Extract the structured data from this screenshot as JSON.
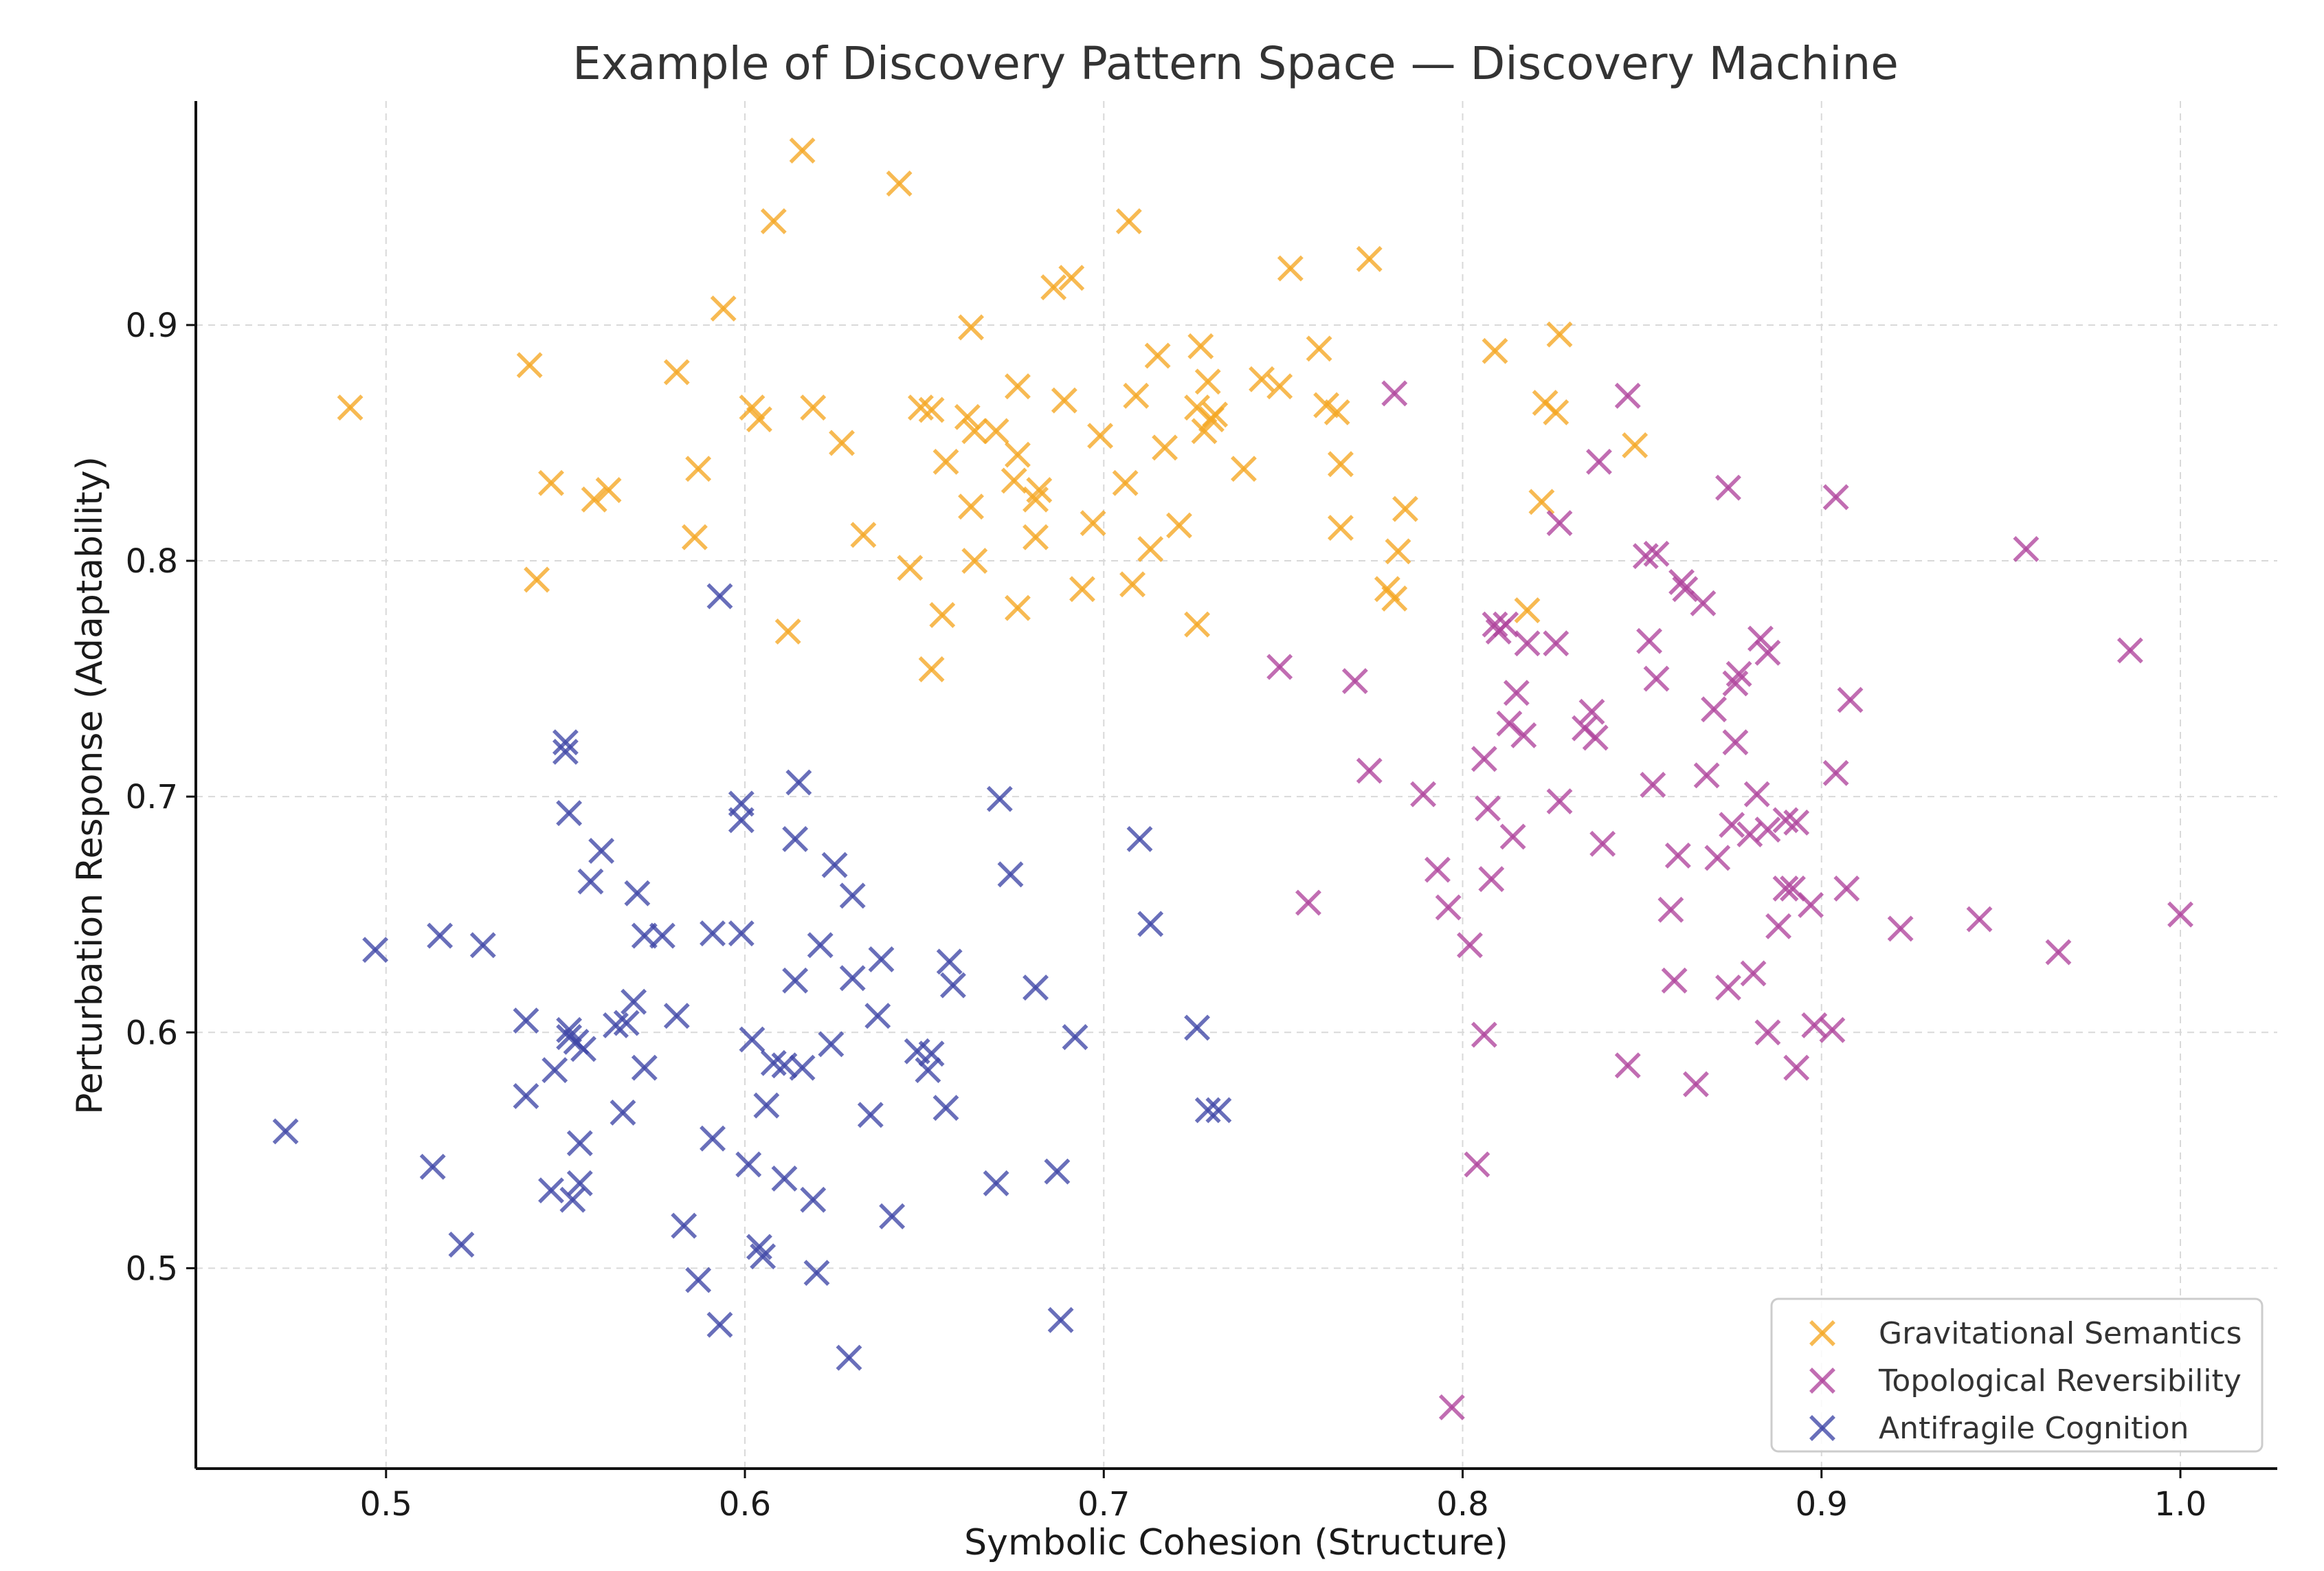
{
  "chart_data": {
    "type": "scatter",
    "title": "Example of Discovery Pattern Space — Discovery Machine",
    "xlabel": "Symbolic Cohesion (Structure)",
    "ylabel": "Perturbation Response (Adaptability)",
    "xlim": [
      0.447,
      1.027
    ],
    "ylim": [
      0.415,
      0.995
    ],
    "xticks": [
      0.5,
      0.6,
      0.7,
      0.8,
      0.9,
      1.0
    ],
    "xtick_labels": [
      "0.5",
      "0.6",
      "0.7",
      "0.8",
      "0.9",
      "1.0"
    ],
    "yticks": [
      0.5,
      0.6,
      0.7,
      0.8,
      0.9
    ],
    "ytick_labels": [
      "0.5",
      "0.6",
      "0.7",
      "0.8",
      "0.9"
    ],
    "grid": true,
    "legend_position": "bottom-right",
    "marker": "x",
    "series": [
      {
        "name": "Gravitational Semantics",
        "color": "#F5A623",
        "points": [
          [
            0.49,
            0.865
          ],
          [
            0.54,
            0.883
          ],
          [
            0.542,
            0.792
          ],
          [
            0.546,
            0.833
          ],
          [
            0.558,
            0.826
          ],
          [
            0.562,
            0.83
          ],
          [
            0.581,
            0.88
          ],
          [
            0.586,
            0.81
          ],
          [
            0.587,
            0.839
          ],
          [
            0.594,
            0.907
          ],
          [
            0.602,
            0.865
          ],
          [
            0.604,
            0.86
          ],
          [
            0.608,
            0.944
          ],
          [
            0.612,
            0.77
          ],
          [
            0.616,
            0.974
          ],
          [
            0.619,
            0.865
          ],
          [
            0.627,
            0.85
          ],
          [
            0.633,
            0.811
          ],
          [
            0.643,
            0.96
          ],
          [
            0.646,
            0.797
          ],
          [
            0.649,
            0.865
          ],
          [
            0.652,
            0.864
          ],
          [
            0.652,
            0.754
          ],
          [
            0.655,
            0.777
          ],
          [
            0.656,
            0.842
          ],
          [
            0.662,
            0.861
          ],
          [
            0.663,
            0.823
          ],
          [
            0.663,
            0.899
          ],
          [
            0.664,
            0.855
          ],
          [
            0.664,
            0.8
          ],
          [
            0.67,
            0.855
          ],
          [
            0.675,
            0.834
          ],
          [
            0.676,
            0.845
          ],
          [
            0.676,
            0.874
          ],
          [
            0.676,
            0.78
          ],
          [
            0.681,
            0.81
          ],
          [
            0.681,
            0.826
          ],
          [
            0.682,
            0.83
          ],
          [
            0.686,
            0.916
          ],
          [
            0.689,
            0.868
          ],
          [
            0.691,
            0.92
          ],
          [
            0.694,
            0.788
          ],
          [
            0.697,
            0.816
          ],
          [
            0.699,
            0.853
          ],
          [
            0.706,
            0.833
          ],
          [
            0.707,
            0.944
          ],
          [
            0.708,
            0.79
          ],
          [
            0.709,
            0.87
          ],
          [
            0.713,
            0.805
          ],
          [
            0.715,
            0.887
          ],
          [
            0.717,
            0.848
          ],
          [
            0.721,
            0.815
          ],
          [
            0.726,
            0.773
          ],
          [
            0.726,
            0.865
          ],
          [
            0.727,
            0.891
          ],
          [
            0.728,
            0.855
          ],
          [
            0.729,
            0.876
          ],
          [
            0.73,
            0.86
          ],
          [
            0.731,
            0.862
          ],
          [
            0.739,
            0.839
          ],
          [
            0.744,
            0.877
          ],
          [
            0.749,
            0.874
          ],
          [
            0.752,
            0.924
          ],
          [
            0.76,
            0.89
          ],
          [
            0.762,
            0.866
          ],
          [
            0.765,
            0.863
          ],
          [
            0.766,
            0.841
          ],
          [
            0.766,
            0.814
          ],
          [
            0.774,
            0.928
          ],
          [
            0.779,
            0.788
          ],
          [
            0.781,
            0.784
          ],
          [
            0.782,
            0.804
          ],
          [
            0.784,
            0.822
          ],
          [
            0.809,
            0.889
          ],
          [
            0.818,
            0.779
          ],
          [
            0.822,
            0.825
          ],
          [
            0.823,
            0.867
          ],
          [
            0.826,
            0.863
          ],
          [
            0.827,
            0.896
          ],
          [
            0.848,
            0.849
          ]
        ]
      },
      {
        "name": "Topological Reversibility",
        "color": "#B0449C",
        "points": [
          [
            0.749,
            0.755
          ],
          [
            0.757,
            0.655
          ],
          [
            0.77,
            0.749
          ],
          [
            0.774,
            0.711
          ],
          [
            0.781,
            0.871
          ],
          [
            0.789,
            0.701
          ],
          [
            0.793,
            0.669
          ],
          [
            0.796,
            0.653
          ],
          [
            0.797,
            0.441
          ],
          [
            0.802,
            0.637
          ],
          [
            0.804,
            0.544
          ],
          [
            0.806,
            0.599
          ],
          [
            0.806,
            0.716
          ],
          [
            0.807,
            0.695
          ],
          [
            0.808,
            0.665
          ],
          [
            0.809,
            0.773
          ],
          [
            0.81,
            0.77
          ],
          [
            0.812,
            0.773
          ],
          [
            0.813,
            0.731
          ],
          [
            0.814,
            0.683
          ],
          [
            0.815,
            0.744
          ],
          [
            0.817,
            0.726
          ],
          [
            0.818,
            0.765
          ],
          [
            0.826,
            0.765
          ],
          [
            0.827,
            0.816
          ],
          [
            0.827,
            0.698
          ],
          [
            0.834,
            0.729
          ],
          [
            0.836,
            0.736
          ],
          [
            0.837,
            0.725
          ],
          [
            0.838,
            0.842
          ],
          [
            0.839,
            0.68
          ],
          [
            0.846,
            0.87
          ],
          [
            0.846,
            0.586
          ],
          [
            0.851,
            0.802
          ],
          [
            0.852,
            0.766
          ],
          [
            0.853,
            0.705
          ],
          [
            0.854,
            0.75
          ],
          [
            0.854,
            0.803
          ],
          [
            0.858,
            0.652
          ],
          [
            0.859,
            0.622
          ],
          [
            0.86,
            0.675
          ],
          [
            0.861,
            0.791
          ],
          [
            0.862,
            0.788
          ],
          [
            0.865,
            0.578
          ],
          [
            0.867,
            0.782
          ],
          [
            0.868,
            0.709
          ],
          [
            0.87,
            0.737
          ],
          [
            0.871,
            0.674
          ],
          [
            0.874,
            0.831
          ],
          [
            0.874,
            0.619
          ],
          [
            0.875,
            0.688
          ],
          [
            0.876,
            0.723
          ],
          [
            0.876,
            0.748
          ],
          [
            0.877,
            0.752
          ],
          [
            0.88,
            0.684
          ],
          [
            0.881,
            0.625
          ],
          [
            0.882,
            0.701
          ],
          [
            0.883,
            0.767
          ],
          [
            0.885,
            0.761
          ],
          [
            0.885,
            0.686
          ],
          [
            0.885,
            0.6
          ],
          [
            0.888,
            0.645
          ],
          [
            0.89,
            0.69
          ],
          [
            0.89,
            0.661
          ],
          [
            0.892,
            0.661
          ],
          [
            0.893,
            0.689
          ],
          [
            0.893,
            0.585
          ],
          [
            0.897,
            0.654
          ],
          [
            0.898,
            0.603
          ],
          [
            0.903,
            0.601
          ],
          [
            0.904,
            0.827
          ],
          [
            0.904,
            0.71
          ],
          [
            0.907,
            0.661
          ],
          [
            0.908,
            0.741
          ],
          [
            0.922,
            0.644
          ],
          [
            0.944,
            0.648
          ],
          [
            0.957,
            0.805
          ],
          [
            0.966,
            0.634
          ],
          [
            0.986,
            0.762
          ],
          [
            1.0,
            0.65
          ]
        ]
      },
      {
        "name": "Antifragile Cognition",
        "color": "#3F47A6",
        "points": [
          [
            0.472,
            0.558
          ],
          [
            0.497,
            0.635
          ],
          [
            0.513,
            0.543
          ],
          [
            0.515,
            0.641
          ],
          [
            0.521,
            0.51
          ],
          [
            0.527,
            0.637
          ],
          [
            0.539,
            0.605
          ],
          [
            0.539,
            0.573
          ],
          [
            0.546,
            0.533
          ],
          [
            0.547,
            0.584
          ],
          [
            0.55,
            0.719
          ],
          [
            0.55,
            0.723
          ],
          [
            0.551,
            0.693
          ],
          [
            0.551,
            0.598
          ],
          [
            0.551,
            0.601
          ],
          [
            0.552,
            0.529
          ],
          [
            0.553,
            0.596
          ],
          [
            0.554,
            0.536
          ],
          [
            0.554,
            0.553
          ],
          [
            0.555,
            0.593
          ],
          [
            0.557,
            0.664
          ],
          [
            0.56,
            0.677
          ],
          [
            0.564,
            0.603
          ],
          [
            0.566,
            0.566
          ],
          [
            0.567,
            0.604
          ],
          [
            0.569,
            0.613
          ],
          [
            0.57,
            0.659
          ],
          [
            0.572,
            0.641
          ],
          [
            0.572,
            0.585
          ],
          [
            0.577,
            0.641
          ],
          [
            0.581,
            0.607
          ],
          [
            0.583,
            0.518
          ],
          [
            0.587,
            0.495
          ],
          [
            0.591,
            0.555
          ],
          [
            0.591,
            0.642
          ],
          [
            0.593,
            0.785
          ],
          [
            0.593,
            0.476
          ],
          [
            0.599,
            0.697
          ],
          [
            0.599,
            0.69
          ],
          [
            0.599,
            0.642
          ],
          [
            0.601,
            0.544
          ],
          [
            0.602,
            0.597
          ],
          [
            0.604,
            0.509
          ],
          [
            0.605,
            0.505
          ],
          [
            0.606,
            0.569
          ],
          [
            0.608,
            0.587
          ],
          [
            0.611,
            0.538
          ],
          [
            0.611,
            0.586
          ],
          [
            0.614,
            0.622
          ],
          [
            0.614,
            0.682
          ],
          [
            0.615,
            0.706
          ],
          [
            0.616,
            0.585
          ],
          [
            0.619,
            0.529
          ],
          [
            0.62,
            0.498
          ],
          [
            0.621,
            0.637
          ],
          [
            0.624,
            0.595
          ],
          [
            0.625,
            0.671
          ],
          [
            0.629,
            0.462
          ],
          [
            0.63,
            0.658
          ],
          [
            0.63,
            0.623
          ],
          [
            0.635,
            0.565
          ],
          [
            0.637,
            0.607
          ],
          [
            0.638,
            0.631
          ],
          [
            0.641,
            0.522
          ],
          [
            0.648,
            0.592
          ],
          [
            0.651,
            0.584
          ],
          [
            0.652,
            0.591
          ],
          [
            0.656,
            0.568
          ],
          [
            0.657,
            0.63
          ],
          [
            0.658,
            0.62
          ],
          [
            0.67,
            0.536
          ],
          [
            0.671,
            0.699
          ],
          [
            0.674,
            0.667
          ],
          [
            0.681,
            0.619
          ],
          [
            0.687,
            0.541
          ],
          [
            0.688,
            0.478
          ],
          [
            0.692,
            0.598
          ],
          [
            0.71,
            0.682
          ],
          [
            0.713,
            0.646
          ],
          [
            0.726,
            0.602
          ],
          [
            0.729,
            0.567
          ],
          [
            0.732,
            0.567
          ]
        ]
      }
    ]
  }
}
